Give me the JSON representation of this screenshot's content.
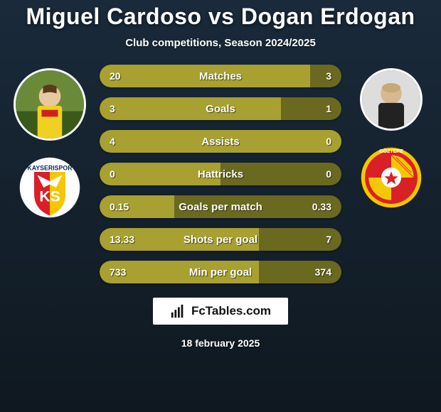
{
  "title": "Miguel Cardoso vs Dogan Erdogan",
  "subtitle": "Club competitions, Season 2024/2025",
  "branding": "FcTables.com",
  "date": "18 february 2025",
  "colors": {
    "player1_bar": "#a8a030",
    "player2_bar": "#6b6820",
    "bar_track": "#262614",
    "title_color": "#ffffff",
    "text_color": "#ffffff"
  },
  "player1": {
    "name": "Miguel Cardoso",
    "club": "Kayserispor",
    "club_colors": {
      "primary": "#d92027",
      "secondary": "#f6c700",
      "tertiary": "#0a2a5c"
    }
  },
  "player2": {
    "name": "Dogan Erdogan",
    "club": "Göztepe",
    "club_colors": {
      "primary": "#d92027",
      "secondary": "#f6c700"
    }
  },
  "stats": [
    {
      "label": "Matches",
      "v1": "20",
      "v2": "3",
      "p1": 87,
      "p2": 13
    },
    {
      "label": "Goals",
      "v1": "3",
      "v2": "1",
      "p1": 75,
      "p2": 25
    },
    {
      "label": "Assists",
      "v1": "4",
      "v2": "0",
      "p1": 100,
      "p2": 0
    },
    {
      "label": "Hattricks",
      "v1": "0",
      "v2": "0",
      "p1": 50,
      "p2": 50
    },
    {
      "label": "Goals per match",
      "v1": "0.15",
      "v2": "0.33",
      "p1": 31,
      "p2": 69
    },
    {
      "label": "Shots per goal",
      "v1": "13.33",
      "v2": "7",
      "p1": 66,
      "p2": 34
    },
    {
      "label": "Min per goal",
      "v1": "733",
      "v2": "374",
      "p1": 66,
      "p2": 34
    }
  ]
}
